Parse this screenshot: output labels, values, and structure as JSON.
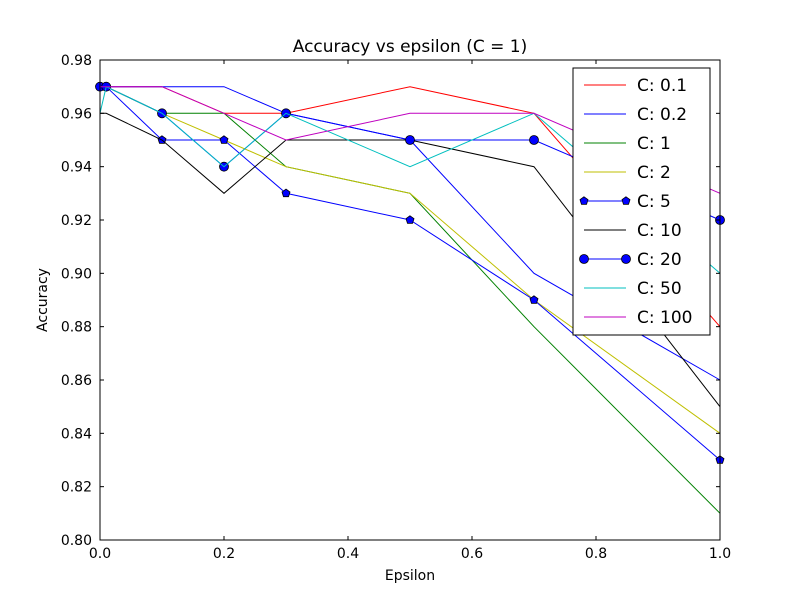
{
  "chart_data": {
    "type": "line",
    "title": "Accuracy vs epsilon (C = 1)",
    "xlabel": "Epsilon",
    "ylabel": "Accuracy",
    "xlim": [
      0.0,
      1.0
    ],
    "ylim": [
      0.8,
      0.98
    ],
    "x_ticks": [
      "0.0",
      "0.2",
      "0.4",
      "0.6",
      "0.8",
      "1.0"
    ],
    "y_ticks": [
      "0.80",
      "0.82",
      "0.84",
      "0.86",
      "0.88",
      "0.90",
      "0.92",
      "0.94",
      "0.96",
      "0.98"
    ],
    "grid": false,
    "legend_position": "top-right",
    "x": [
      0.0,
      0.01,
      0.1,
      0.2,
      0.3,
      0.5,
      0.7,
      1.0
    ],
    "series": [
      {
        "name": "C: 0.1",
        "color": "#ff0000",
        "marker": "none",
        "values": [
          0.97,
          0.97,
          0.97,
          0.96,
          0.96,
          0.97,
          0.96,
          0.88
        ]
      },
      {
        "name": "C: 0.2",
        "color": "#0000ff",
        "marker": "none",
        "values": [
          0.97,
          0.97,
          0.97,
          0.97,
          0.96,
          0.95,
          0.9,
          0.86
        ]
      },
      {
        "name": "C: 1",
        "color": "#008000",
        "marker": "none",
        "values": [
          0.97,
          0.97,
          0.96,
          0.96,
          0.94,
          0.93,
          0.88,
          0.81
        ]
      },
      {
        "name": "C: 2",
        "color": "#bfbf00",
        "marker": "none",
        "values": [
          0.97,
          0.97,
          0.96,
          0.95,
          0.94,
          0.93,
          0.89,
          0.84
        ]
      },
      {
        "name": "C: 5",
        "color": "#0000ff",
        "marker": "pentagon",
        "values": [
          0.97,
          0.97,
          0.95,
          0.95,
          0.93,
          0.92,
          0.89,
          0.83
        ]
      },
      {
        "name": "C: 10",
        "color": "#000000",
        "marker": "none",
        "values": [
          0.96,
          0.96,
          0.95,
          0.93,
          0.95,
          0.95,
          0.94,
          0.85
        ]
      },
      {
        "name": "C: 20",
        "color": "#0000ff",
        "marker": "circle",
        "values": [
          0.97,
          0.97,
          0.96,
          0.94,
          0.96,
          0.95,
          0.95,
          0.92
        ]
      },
      {
        "name": "C: 50",
        "color": "#00bfbf",
        "marker": "none",
        "values": [
          0.96,
          0.97,
          0.96,
          0.94,
          0.96,
          0.94,
          0.96,
          0.9
        ]
      },
      {
        "name": "C: 100",
        "color": "#bf00bf",
        "marker": "none",
        "values": [
          0.97,
          0.97,
          0.97,
          0.96,
          0.95,
          0.96,
          0.96,
          0.93
        ]
      }
    ]
  }
}
